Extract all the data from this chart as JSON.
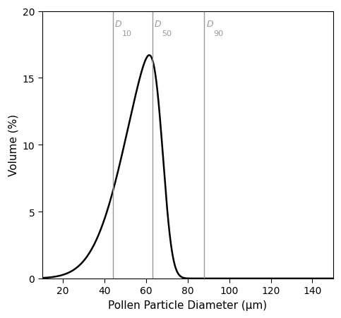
{
  "xlim": [
    10,
    150
  ],
  "ylim": [
    0,
    20
  ],
  "xlabel": "Pollen Particle Diameter (μm)",
  "ylabel": "Volume (%)",
  "xticks": [
    20,
    40,
    60,
    80,
    100,
    120,
    140
  ],
  "yticks": [
    0,
    5,
    10,
    15,
    20
  ],
  "vlines": [
    {
      "x": 44,
      "label": "D",
      "sub": "10"
    },
    {
      "x": 63,
      "label": "D",
      "sub": "50"
    },
    {
      "x": 88,
      "label": "D",
      "sub": "90"
    }
  ],
  "curve_color": "#000000",
  "vline_color": "#999999",
  "curve_lw": 1.8,
  "peak_x": 63,
  "peak_y": 16.7,
  "dist_mu": 65,
  "dist_sigma": 18,
  "dist_skew": -0.4,
  "background_color": "#ffffff",
  "label_fontsize": 11,
  "tick_fontsize": 10,
  "vline_label_fontsize": 9
}
